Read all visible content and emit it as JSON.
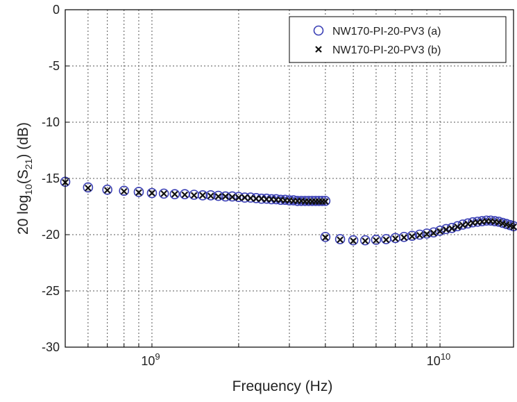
{
  "chart_data": {
    "type": "scatter",
    "title": "",
    "xlabel": "Frequency (Hz)",
    "ylabel": "20 log10(S21) (dB)",
    "ylabel_parts": {
      "prefix": "20 log",
      "log_base": "10",
      "open": "(S",
      "s_sub": "21",
      "close": ") (dB)"
    },
    "x_scale": "log",
    "xlim": [
      500000000,
      18000000000
    ],
    "ylim": [
      -30,
      0
    ],
    "grid": true,
    "legend_position": "top-right",
    "y_ticks": [
      {
        "value": 0,
        "label": "0"
      },
      {
        "value": -5,
        "label": "-5"
      },
      {
        "value": -10,
        "label": "-10"
      },
      {
        "value": -15,
        "label": "-15"
      },
      {
        "value": -20,
        "label": "-20"
      },
      {
        "value": -25,
        "label": "-25"
      },
      {
        "value": -30,
        "label": "-30"
      }
    ],
    "x_ticks": [
      {
        "value": 1000000000,
        "base": "10",
        "exp": "9"
      },
      {
        "value": 10000000000,
        "base": "10",
        "exp": "10"
      }
    ],
    "x_minor_ticks": [
      600000000,
      700000000,
      800000000,
      900000000,
      2000000000,
      3000000000,
      4000000000,
      5000000000,
      6000000000,
      7000000000,
      8000000000,
      9000000000
    ],
    "series": [
      {
        "name": "NW170-PI-20-PV3 (a)",
        "marker": "circle",
        "color": "#3a3fb5",
        "points": [
          [
            500000000,
            -15.3
          ],
          [
            600000000,
            -15.8
          ],
          [
            700000000,
            -16.0
          ],
          [
            800000000,
            -16.1
          ],
          [
            900000000,
            -16.2
          ],
          [
            1000000000,
            -16.3
          ],
          [
            1100000000,
            -16.35
          ],
          [
            1200000000,
            -16.4
          ],
          [
            1300000000,
            -16.4
          ],
          [
            1400000000,
            -16.45
          ],
          [
            1500000000,
            -16.5
          ],
          [
            1600000000,
            -16.5
          ],
          [
            1700000000,
            -16.55
          ],
          [
            1800000000,
            -16.6
          ],
          [
            1900000000,
            -16.6
          ],
          [
            2000000000,
            -16.65
          ],
          [
            2100000000,
            -16.7
          ],
          [
            2200000000,
            -16.7
          ],
          [
            2300000000,
            -16.75
          ],
          [
            2400000000,
            -16.8
          ],
          [
            2500000000,
            -16.8
          ],
          [
            2600000000,
            -16.85
          ],
          [
            2700000000,
            -16.85
          ],
          [
            2800000000,
            -16.9
          ],
          [
            2900000000,
            -16.9
          ],
          [
            3000000000,
            -16.95
          ],
          [
            3100000000,
            -16.95
          ],
          [
            3200000000,
            -17.0
          ],
          [
            3300000000,
            -17.0
          ],
          [
            3400000000,
            -17.0
          ],
          [
            3500000000,
            -17.0
          ],
          [
            3600000000,
            -17.0
          ],
          [
            3700000000,
            -17.0
          ],
          [
            3800000000,
            -17.0
          ],
          [
            3900000000,
            -17.0
          ],
          [
            4000000000,
            -17.0
          ],
          [
            4000000000,
            -20.2
          ],
          [
            4500000000,
            -20.4
          ],
          [
            5000000000,
            -20.5
          ],
          [
            5500000000,
            -20.5
          ],
          [
            6000000000,
            -20.45
          ],
          [
            6500000000,
            -20.4
          ],
          [
            7000000000,
            -20.3
          ],
          [
            7500000000,
            -20.2
          ],
          [
            8000000000,
            -20.1
          ],
          [
            8500000000,
            -20.0
          ],
          [
            9000000000,
            -19.9
          ],
          [
            9500000000,
            -19.8
          ],
          [
            10000000000,
            -19.65
          ],
          [
            10500000000,
            -19.5
          ],
          [
            11000000000,
            -19.4
          ],
          [
            11500000000,
            -19.25
          ],
          [
            12000000000,
            -19.1
          ],
          [
            12500000000,
            -19.0
          ],
          [
            13000000000,
            -18.9
          ],
          [
            13500000000,
            -18.85
          ],
          [
            14000000000,
            -18.8
          ],
          [
            14500000000,
            -18.75
          ],
          [
            15000000000,
            -18.75
          ],
          [
            15500000000,
            -18.8
          ],
          [
            16000000000,
            -18.85
          ],
          [
            16500000000,
            -18.95
          ],
          [
            17000000000,
            -19.05
          ],
          [
            17500000000,
            -19.15
          ],
          [
            18000000000,
            -19.25
          ]
        ]
      },
      {
        "name": "NW170-PI-20-PV3 (b)",
        "marker": "x",
        "color": "#111111",
        "points": [
          [
            500000000,
            -15.35
          ],
          [
            600000000,
            -15.85
          ],
          [
            700000000,
            -16.05
          ],
          [
            800000000,
            -16.15
          ],
          [
            900000000,
            -16.25
          ],
          [
            1000000000,
            -16.3
          ],
          [
            1100000000,
            -16.35
          ],
          [
            1200000000,
            -16.4
          ],
          [
            1300000000,
            -16.45
          ],
          [
            1400000000,
            -16.5
          ],
          [
            1500000000,
            -16.5
          ],
          [
            1600000000,
            -16.55
          ],
          [
            1700000000,
            -16.6
          ],
          [
            1800000000,
            -16.6
          ],
          [
            1900000000,
            -16.65
          ],
          [
            2000000000,
            -16.7
          ],
          [
            2100000000,
            -16.7
          ],
          [
            2200000000,
            -16.75
          ],
          [
            2300000000,
            -16.8
          ],
          [
            2400000000,
            -16.8
          ],
          [
            2500000000,
            -16.85
          ],
          [
            2600000000,
            -16.85
          ],
          [
            2700000000,
            -16.9
          ],
          [
            2800000000,
            -16.9
          ],
          [
            2900000000,
            -16.95
          ],
          [
            3000000000,
            -16.95
          ],
          [
            3100000000,
            -17.0
          ],
          [
            3200000000,
            -17.0
          ],
          [
            3300000000,
            -17.0
          ],
          [
            3400000000,
            -17.05
          ],
          [
            3500000000,
            -17.05
          ],
          [
            3600000000,
            -17.05
          ],
          [
            3700000000,
            -17.05
          ],
          [
            3800000000,
            -17.05
          ],
          [
            3900000000,
            -17.05
          ],
          [
            4000000000,
            -17.05
          ],
          [
            4000000000,
            -20.25
          ],
          [
            4500000000,
            -20.45
          ],
          [
            5000000000,
            -20.55
          ],
          [
            5500000000,
            -20.55
          ],
          [
            6000000000,
            -20.5
          ],
          [
            6500000000,
            -20.45
          ],
          [
            7000000000,
            -20.35
          ],
          [
            7500000000,
            -20.25
          ],
          [
            8000000000,
            -20.15
          ],
          [
            8500000000,
            -20.05
          ],
          [
            9000000000,
            -19.95
          ],
          [
            9500000000,
            -19.85
          ],
          [
            10000000000,
            -19.7
          ],
          [
            10500000000,
            -19.55
          ],
          [
            11000000000,
            -19.45
          ],
          [
            11500000000,
            -19.3
          ],
          [
            12000000000,
            -19.15
          ],
          [
            12500000000,
            -19.05
          ],
          [
            13000000000,
            -18.95
          ],
          [
            13500000000,
            -18.9
          ],
          [
            14000000000,
            -18.85
          ],
          [
            14500000000,
            -18.8
          ],
          [
            15000000000,
            -18.8
          ],
          [
            15500000000,
            -18.85
          ],
          [
            16000000000,
            -18.9
          ],
          [
            16500000000,
            -19.0
          ],
          [
            17000000000,
            -19.1
          ],
          [
            17500000000,
            -19.2
          ],
          [
            18000000000,
            -19.3
          ]
        ]
      }
    ]
  }
}
